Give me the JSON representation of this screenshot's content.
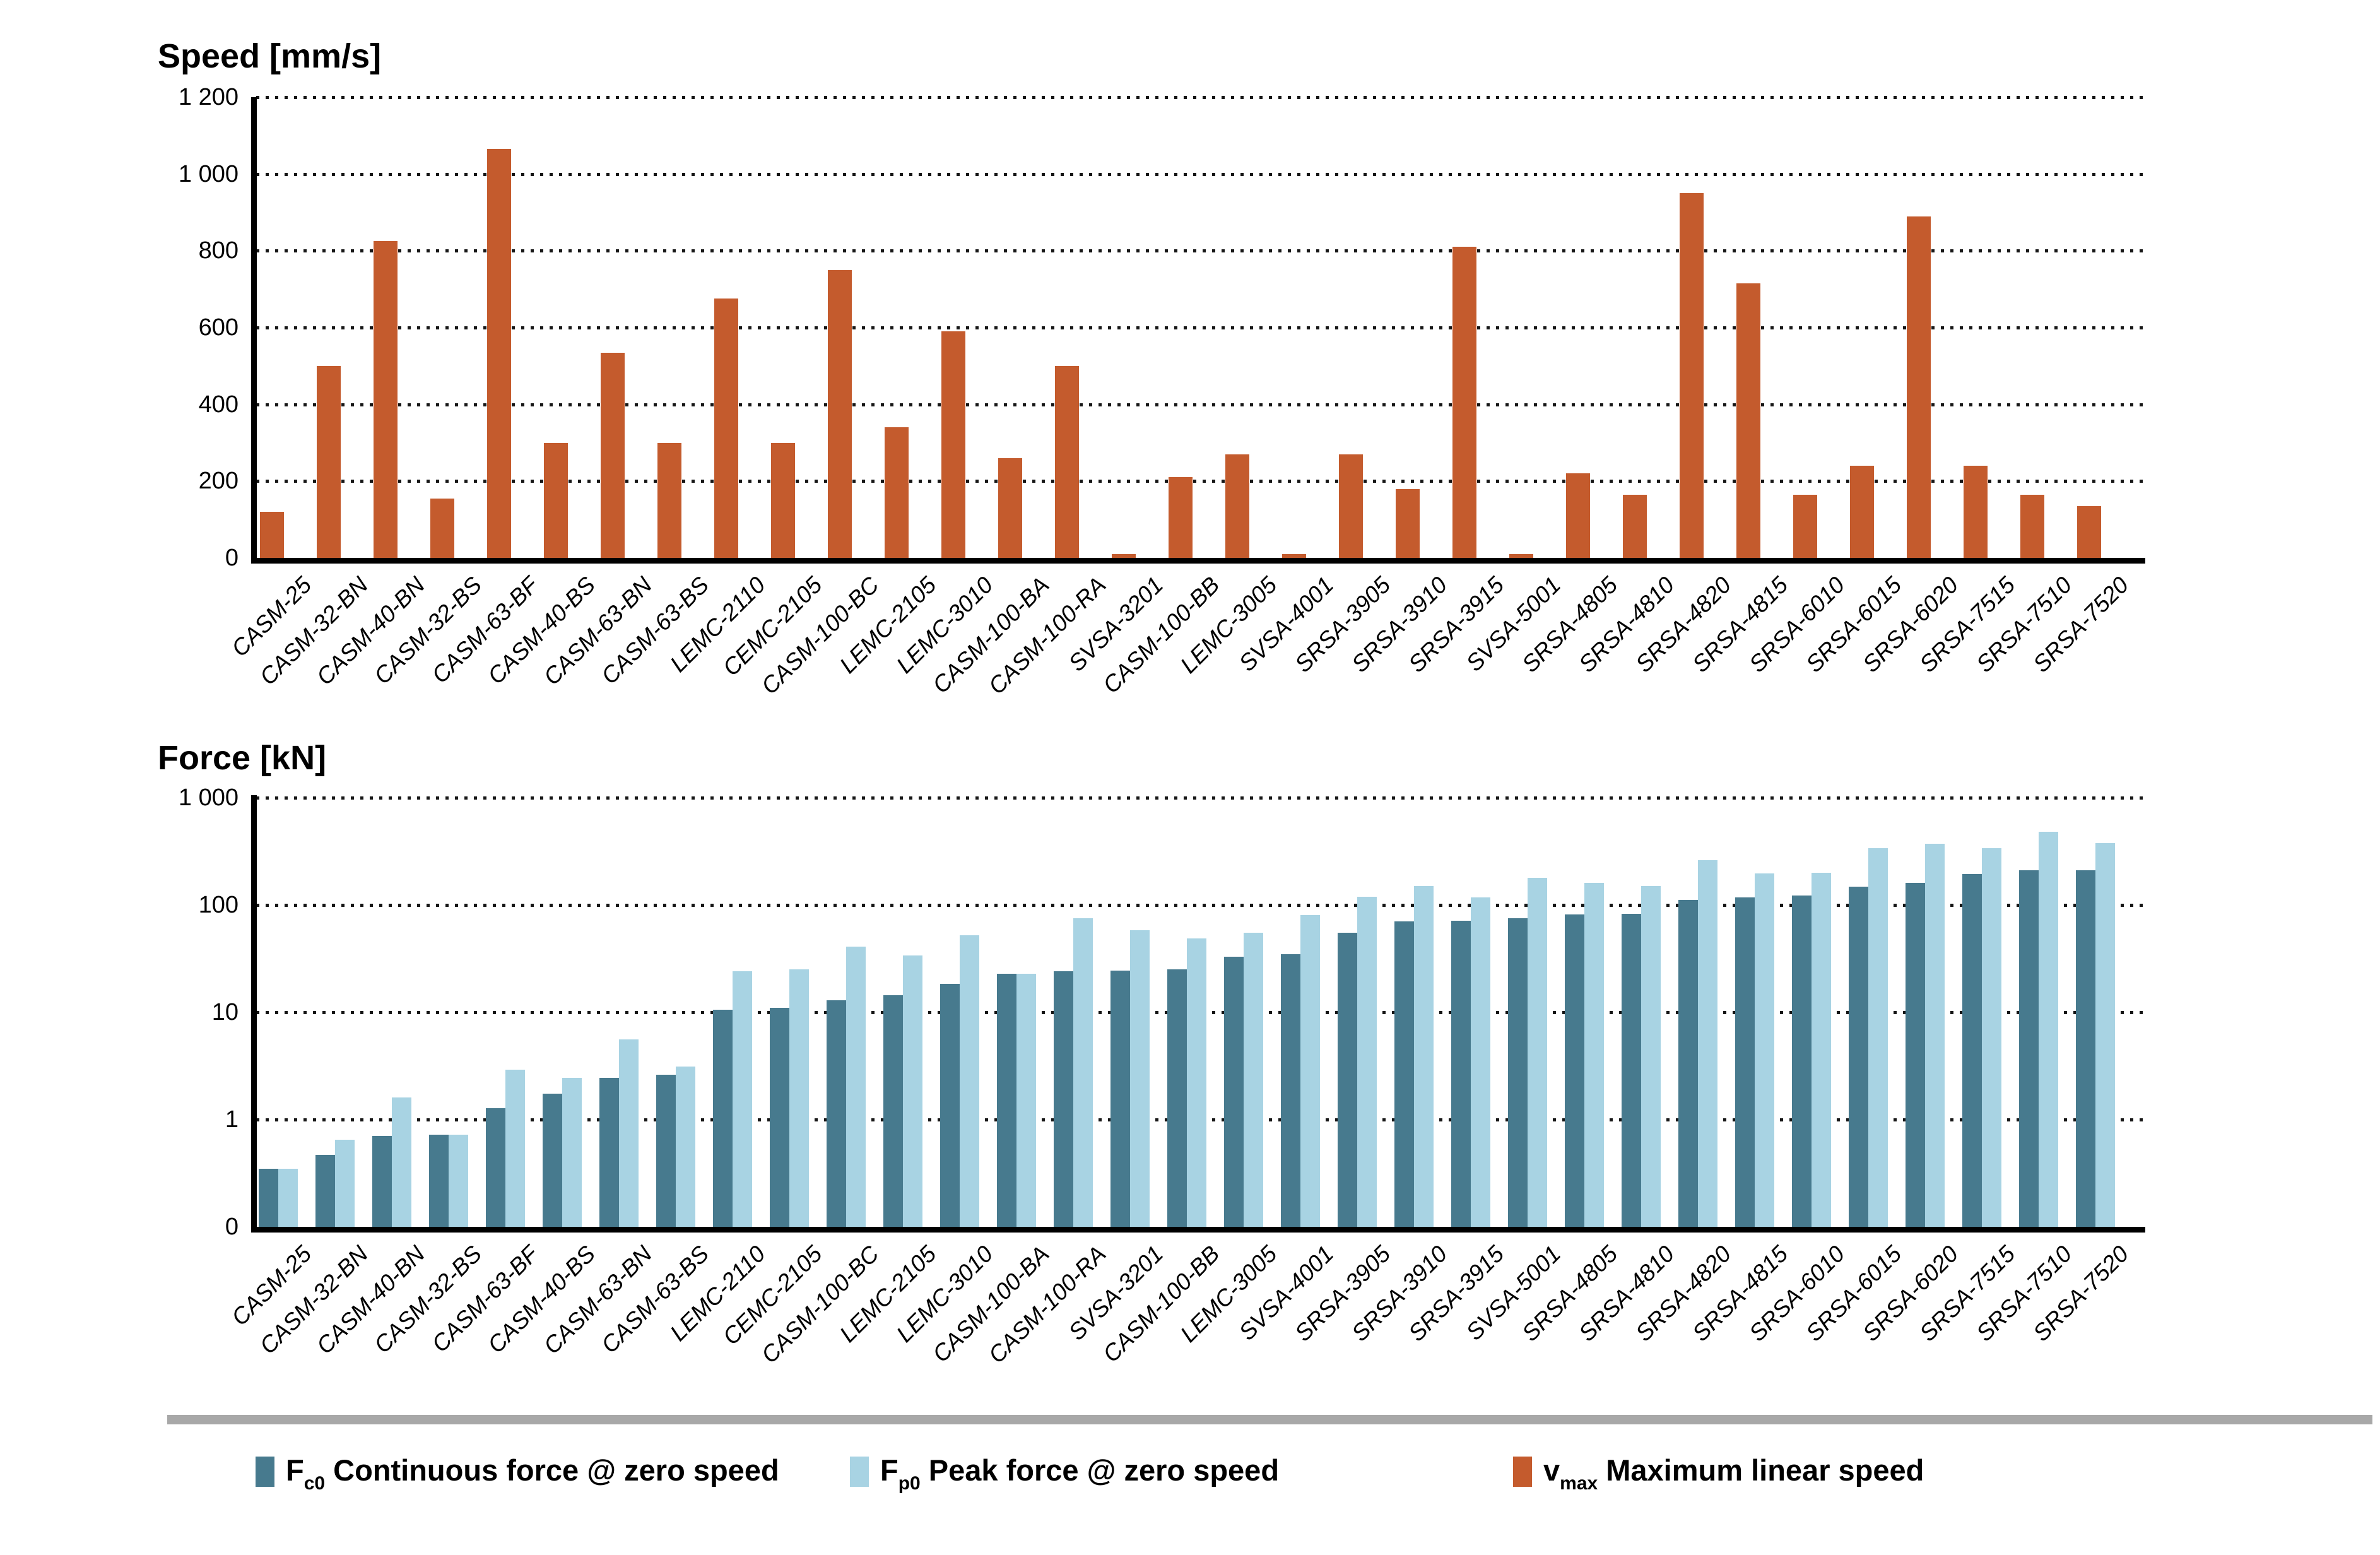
{
  "chart_data": [
    {
      "type": "bar",
      "title": "Speed [mm/s]",
      "scale": "linear",
      "ylim": [
        0,
        1200
      ],
      "grid": "dotted-horizontal",
      "yticks": [
        {
          "label": "1 200",
          "v": 1200
        },
        {
          "label": "1 000",
          "v": 1000
        },
        {
          "label": "800",
          "v": 800
        },
        {
          "label": "600",
          "v": 600
        },
        {
          "label": "400",
          "v": 400
        },
        {
          "label": "200",
          "v": 200
        },
        {
          "label": "0",
          "v": 0
        }
      ],
      "categories": [
        "CASM-25",
        "CASM-32-BN",
        "CASM-40-BN",
        "CASM-32-BS",
        "CASM-63-BF",
        "CASM-40-BS",
        "CASM-63-BN",
        "CASM-63-BS",
        "LEMC-2110",
        "CEMC-2105",
        "CASM-100-BC",
        "LEMC-2105",
        "LEMC-3010",
        "CASM-100-BA",
        "CASM-100-RA",
        "SVSA-3201",
        "CASM-100-BB",
        "LEMC-3005",
        "SVSA-4001",
        "SRSA-3905",
        "SRSA-3910",
        "SRSA-3915",
        "SVSA-5001",
        "SRSA-4805",
        "SRSA-4810",
        "SRSA-4820",
        "SRSA-4815",
        "SRSA-6010",
        "SRSA-6015",
        "SRSA-6020",
        "SRSA-7515",
        "SRSA-7510",
        "SRSA-7520"
      ],
      "series": [
        {
          "name": "vmax Maximum linear speed",
          "color": "#c45b2d",
          "values": [
            120,
            500,
            825,
            155,
            1065,
            300,
            535,
            300,
            675,
            300,
            750,
            340,
            590,
            260,
            500,
            10,
            210,
            270,
            10,
            270,
            180,
            810,
            10,
            220,
            165,
            950,
            715,
            165,
            240,
            890,
            240,
            165,
            135
          ]
        }
      ],
      "legend_position": "bottom"
    },
    {
      "type": "bar",
      "title": "Force [kN]",
      "scale": "log",
      "ylim": [
        0,
        1000
      ],
      "grid": "dotted-horizontal",
      "yticks": [
        {
          "label": "1 000",
          "v": 1000
        },
        {
          "label": "100",
          "v": 100
        },
        {
          "label": "10",
          "v": 10
        },
        {
          "label": "1",
          "v": 1
        },
        {
          "label": "0",
          "v": 0
        }
      ],
      "categories": [
        "CASM-25",
        "CASM-32-BN",
        "CASM-40-BN",
        "CASM-32-BS",
        "CASM-63-BF",
        "CASM-40-BS",
        "CASM-63-BN",
        "CASM-63-BS",
        "LEMC-2110",
        "CEMC-2105",
        "CASM-100-BC",
        "LEMC-2105",
        "LEMC-3010",
        "CASM-100-BA",
        "CASM-100-RA",
        "SVSA-3201",
        "CASM-100-BB",
        "LEMC-3005",
        "SVSA-4001",
        "SRSA-3905",
        "SRSA-3910",
        "SRSA-3915",
        "SVSA-5001",
        "SRSA-4805",
        "SRSA-4810",
        "SRSA-4820",
        "SRSA-4815",
        "SRSA-6010",
        "SRSA-6015",
        "SRSA-6020",
        "SRSA-7515",
        "SRSA-7510",
        "SRSA-7520"
      ],
      "series": [
        {
          "name": "Fc0 Continuous force @ zero speed",
          "color": "#477a8e",
          "values": [
            0.35,
            0.47,
            0.7,
            0.72,
            1.27,
            1.75,
            2.45,
            2.6,
            10.5,
            11,
            13,
            14.5,
            18.5,
            23,
            24,
            24.5,
            25,
            33,
            35,
            55,
            70,
            71,
            75,
            82,
            83,
            111,
            117,
            122,
            148,
            160,
            195,
            210,
            210
          ]
        },
        {
          "name": "Fp0 Peak force @ zero speed",
          "color": "#a8d3e3",
          "values": [
            0.35,
            0.65,
            1.6,
            0.72,
            2.9,
            2.45,
            5.6,
            3.1,
            24,
            25,
            41,
            34,
            52,
            23,
            75,
            58,
            49,
            55,
            80,
            120,
            150,
            118,
            178,
            160,
            150,
            260,
            196,
            200,
            340,
            370,
            340,
            480,
            375
          ]
        }
      ],
      "legend_position": "bottom"
    }
  ],
  "legend": {
    "items": [
      {
        "symbol": "F",
        "sub": "c0",
        "label": "Continuous force @ zero speed",
        "color": "#477a8e"
      },
      {
        "symbol": "F",
        "sub": "p0",
        "label": "Peak force @ zero speed",
        "color": "#a8d3e3"
      },
      {
        "symbol": "v",
        "sub": "max",
        "label": "Maximum linear speed",
        "color": "#c45b2d"
      }
    ]
  }
}
